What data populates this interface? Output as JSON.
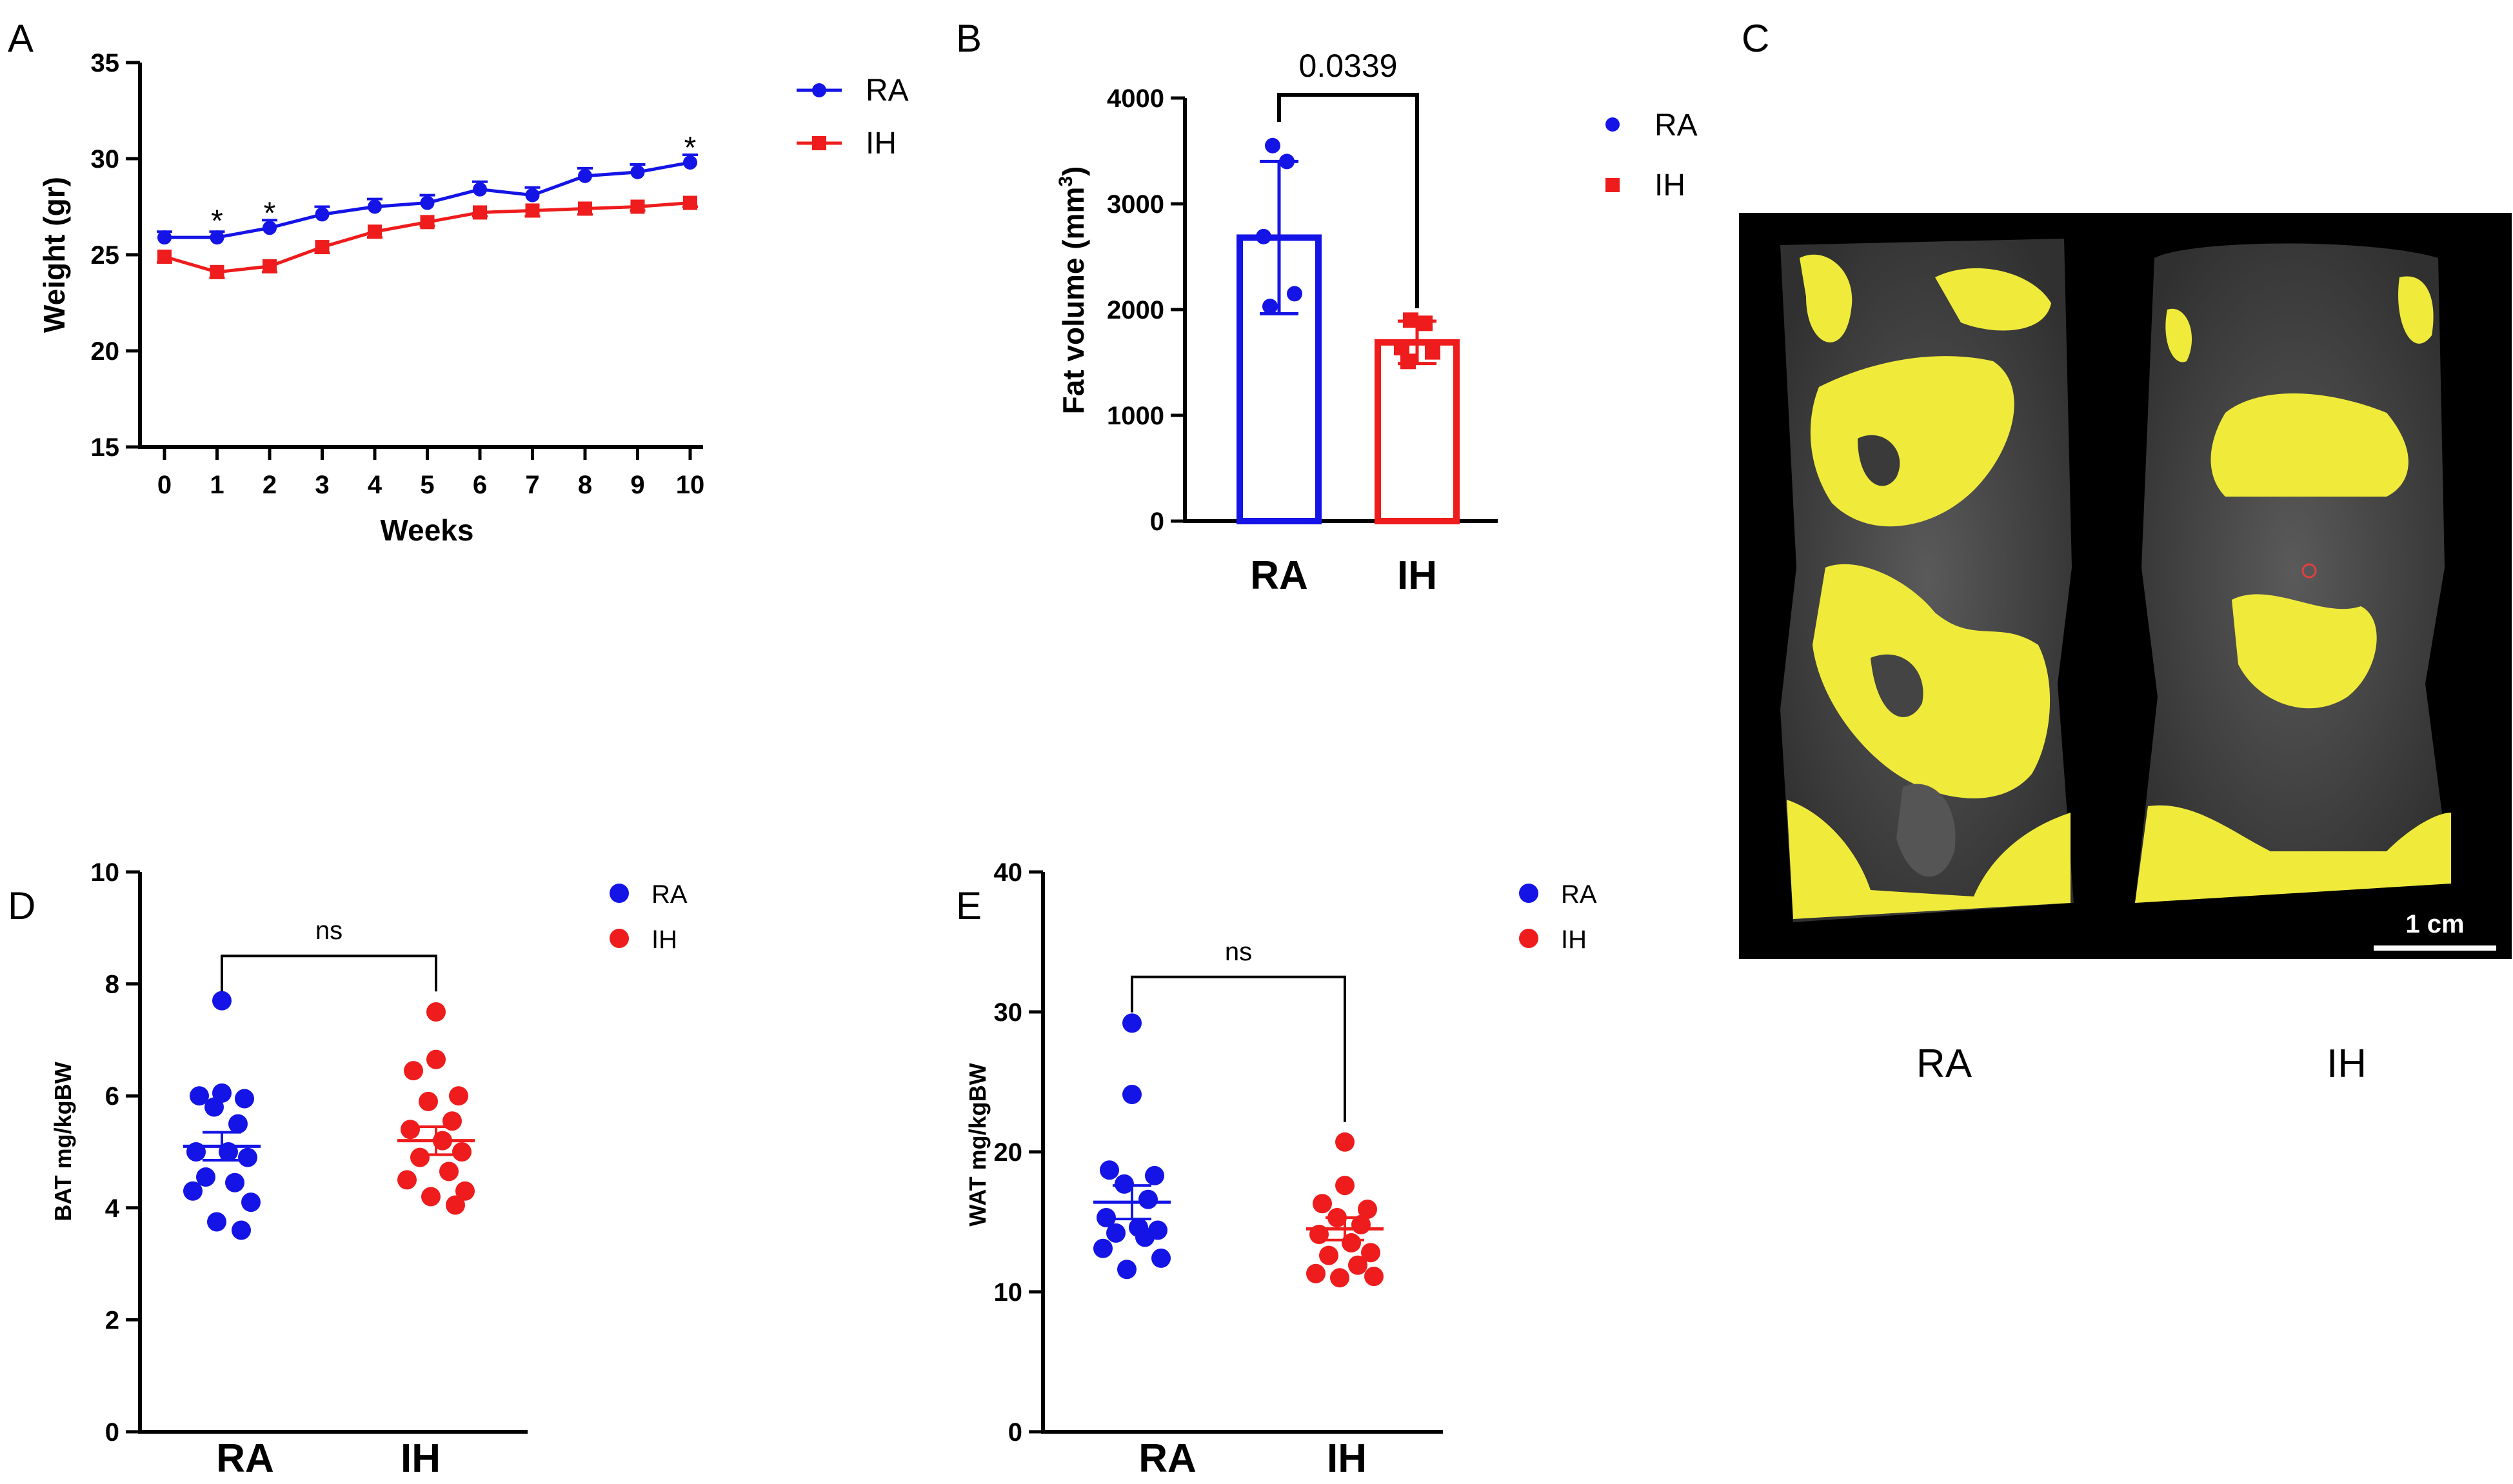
{
  "colors": {
    "RA": "#1414e6",
    "IH": "#ee1c1c",
    "fat": "#f0eb3a",
    "scan_bg": "#000000"
  },
  "panels": {
    "A": {
      "letter": "A"
    },
    "B": {
      "letter": "B"
    },
    "C": {
      "letter": "C"
    },
    "D": {
      "letter": "D"
    },
    "E": {
      "letter": "E"
    }
  },
  "chart_data": [
    {
      "id": "A",
      "type": "line",
      "title": "",
      "xlabel": "Weeks",
      "ylabel": "Weight (gr)",
      "x": [
        0,
        1,
        2,
        3,
        4,
        5,
        6,
        7,
        8,
        9,
        10
      ],
      "xticks": [
        "0",
        "1",
        "2",
        "3",
        "4",
        "5",
        "6",
        "7",
        "8",
        "9",
        "10"
      ],
      "ylim": [
        15,
        35
      ],
      "yticks": [
        "15",
        "20",
        "25",
        "30",
        "35"
      ],
      "legend": [
        "RA",
        "IH"
      ],
      "series": [
        {
          "name": "RA",
          "marker": "circle",
          "values": [
            25.9,
            25.9,
            26.4,
            27.1,
            27.5,
            27.7,
            28.4,
            28.1,
            29.1,
            29.3,
            29.8
          ],
          "err": [
            0.3,
            0.3,
            0.4,
            0.4,
            0.4,
            0.4,
            0.4,
            0.4,
            0.4,
            0.4,
            0.4
          ]
        },
        {
          "name": "IH",
          "marker": "square",
          "values": [
            24.9,
            24.1,
            24.4,
            25.4,
            26.2,
            26.7,
            27.2,
            27.3,
            27.4,
            27.5,
            27.7
          ],
          "err": [
            0.3,
            0.3,
            0.3,
            0.3,
            0.3,
            0.2,
            0.2,
            0.3,
            0.3,
            0.2,
            0.2
          ]
        }
      ],
      "annotations": [
        {
          "x": 1,
          "y": 26.9,
          "text": "*"
        },
        {
          "x": 2,
          "y": 27.3,
          "text": "*"
        },
        {
          "x": 10,
          "y": 30.7,
          "text": "*"
        }
      ]
    },
    {
      "id": "B",
      "type": "bar",
      "title": "",
      "xlabel": "",
      "ylabel_main": "Fat volume (mm",
      "ylabel_sup": "3",
      "ylabel_close": ")",
      "categories": [
        "RA",
        "IH"
      ],
      "values": [
        2680,
        1690
      ],
      "err": [
        720,
        200
      ],
      "points": [
        [
          3550,
          3400,
          2690,
          2150,
          2030
        ],
        [
          1900,
          1870,
          1640,
          1600,
          1510
        ]
      ],
      "ylim": [
        0,
        4000
      ],
      "yticks": [
        "0",
        "1000",
        "2000",
        "3000",
        "4000"
      ],
      "legend": [
        "RA",
        "IH"
      ],
      "significance": {
        "text": "0.0339",
        "y": 4000
      }
    },
    {
      "id": "D",
      "type": "scatter",
      "title": "",
      "ylabel": "BAT mg/kgBW",
      "categories": [
        "RA",
        "IH"
      ],
      "ylim": [
        0,
        10
      ],
      "yticks": [
        "0",
        "2",
        "4",
        "6",
        "8",
        "10"
      ],
      "means": [
        5.1,
        5.2
      ],
      "sem": [
        0.25,
        0.25
      ],
      "points": [
        [
          7.7,
          6.05,
          6.0,
          5.95,
          5.8,
          5.5,
          5.0,
          5.0,
          4.9,
          4.55,
          4.45,
          4.3,
          4.1,
          3.75,
          3.6
        ],
        [
          7.5,
          6.65,
          6.45,
          6.0,
          5.9,
          5.55,
          5.4,
          5.2,
          5.0,
          4.9,
          4.65,
          4.5,
          4.3,
          4.2,
          4.05
        ]
      ],
      "legend": [
        "RA",
        "IH"
      ],
      "significance": {
        "text": "ns",
        "y": 8.5
      }
    },
    {
      "id": "E",
      "type": "scatter",
      "title": "",
      "ylabel": "WAT mg/kgBW",
      "categories": [
        "RA",
        "IH"
      ],
      "ylim": [
        0,
        40
      ],
      "yticks": [
        "0",
        "10",
        "20",
        "30",
        "40"
      ],
      "means": [
        16.4,
        14.5
      ],
      "sem": [
        1.2,
        0.8
      ],
      "points": [
        [
          29.2,
          24.1,
          18.7,
          18.3,
          17.7,
          16.6,
          15.3,
          14.6,
          14.4,
          14.2,
          13.9,
          13.1,
          12.4,
          11.6
        ],
        [
          20.7,
          17.6,
          16.3,
          15.9,
          15.3,
          14.8,
          14.1,
          13.5,
          12.8,
          12.6,
          11.9,
          11.3,
          11.1,
          11.0
        ]
      ],
      "legend": [
        "RA",
        "IH"
      ],
      "significance": {
        "text": "ns",
        "y": 32.5
      }
    }
  ],
  "scan": {
    "scale_label": "1 cm",
    "captions": [
      "RA",
      "IH"
    ]
  }
}
